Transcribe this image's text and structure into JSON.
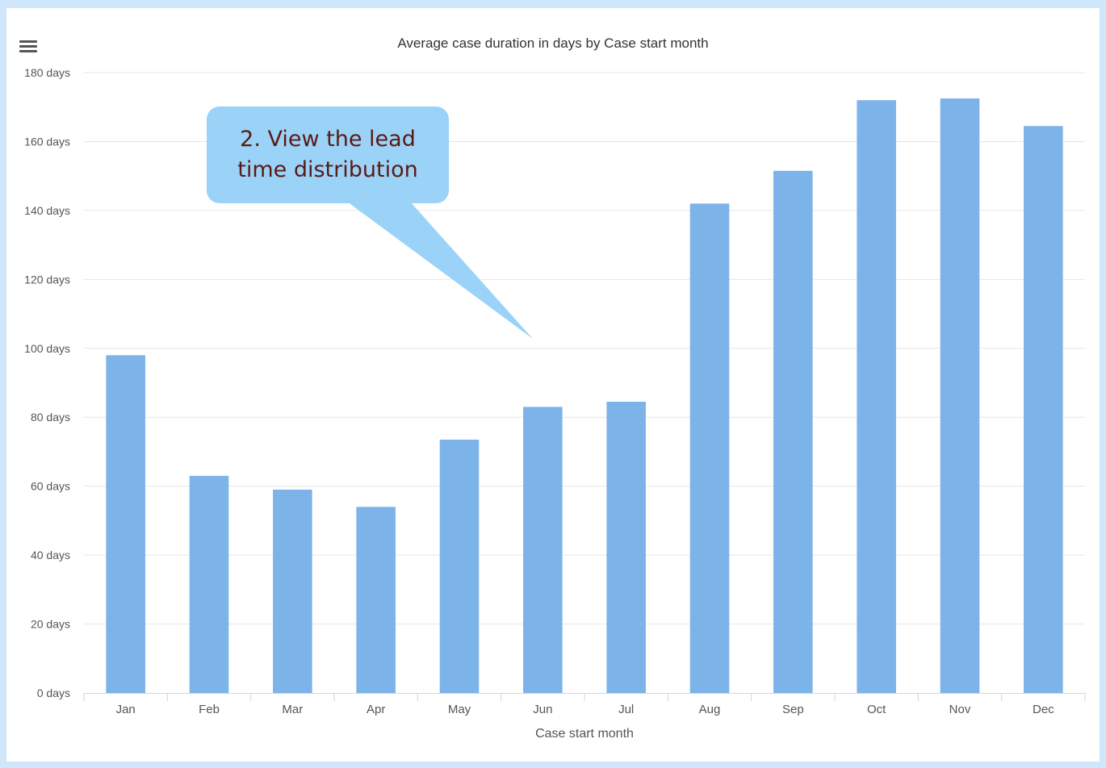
{
  "menu": {
    "icon": "hamburger-menu-icon"
  },
  "callout": {
    "line1": "2. View the lead",
    "line2": "time distribution",
    "color": "#9ad3f7"
  },
  "chart_data": {
    "type": "bar",
    "title": "Average case duration in days by Case start month",
    "xlabel": "Case start month",
    "ylabel": "",
    "categories": [
      "Jan",
      "Feb",
      "Mar",
      "Apr",
      "May",
      "Jun",
      "Jul",
      "Aug",
      "Sep",
      "Oct",
      "Nov",
      "Dec"
    ],
    "values": [
      98,
      63,
      59,
      54,
      73.5,
      83,
      84.5,
      142,
      151.5,
      172,
      172.5,
      164.5
    ],
    "ylim": [
      0,
      180
    ],
    "yticks": [
      "0 days",
      "20 days",
      "40 days",
      "60 days",
      "80 days",
      "100 days",
      "120 days",
      "140 days",
      "160 days",
      "180 days"
    ],
    "bar_color": "#7cb4ea",
    "grid": true,
    "legend": "none"
  }
}
